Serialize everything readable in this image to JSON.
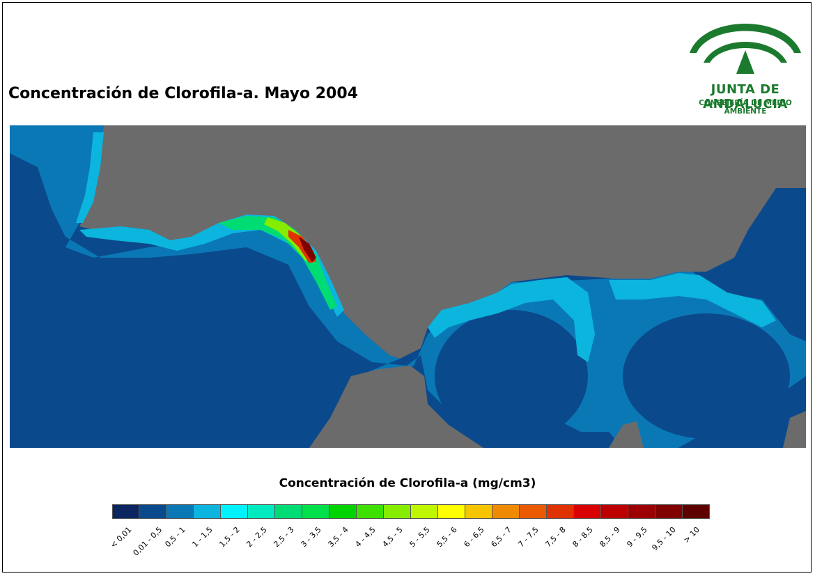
{
  "title": "Concentración de Clorofila-a. Mayo 2004",
  "logo": {
    "name": "JUNTA DE ANDALUCIA",
    "subtitle": "CONSEJERÍA DE MEDIO AMBIENTE",
    "color": "#1b7a2e"
  },
  "map": {
    "land_color": "#6b6b6b",
    "sea_base_color": "#0a4a8c"
  },
  "legend": {
    "title": "Concentración de Clorofila-a (mg/cm3)",
    "classes": [
      {
        "label": "< 0,01",
        "color": "#0a2560"
      },
      {
        "label": "0,01 - 0,5",
        "color": "#0a4a8c"
      },
      {
        "label": "0,5 - 1",
        "color": "#0b78b6"
      },
      {
        "label": "1 - 1,5",
        "color": "#0cb5dd"
      },
      {
        "label": "1,5 - 2",
        "color": "#00f2ff"
      },
      {
        "label": "2 - 2,5",
        "color": "#00eabf"
      },
      {
        "label": "2,5 - 3",
        "color": "#00dc74"
      },
      {
        "label": "3 - 3,5",
        "color": "#00e04a"
      },
      {
        "label": "3,5 - 4",
        "color": "#00d400"
      },
      {
        "label": "4 - 4,5",
        "color": "#3ee000"
      },
      {
        "label": "4,5 - 5",
        "color": "#86ec00"
      },
      {
        "label": "5 - 5,5",
        "color": "#bff700"
      },
      {
        "label": "5,5 - 6",
        "color": "#ffff00"
      },
      {
        "label": "6 - 6,5",
        "color": "#f6c500"
      },
      {
        "label": "6,5 - 7",
        "color": "#f08a00"
      },
      {
        "label": "7 - 7,5",
        "color": "#ea5a00"
      },
      {
        "label": "7,5 - 8",
        "color": "#e03200"
      },
      {
        "label": "8 - 8,5",
        "color": "#d80000"
      },
      {
        "label": "8,5 - 9",
        "color": "#bc0000"
      },
      {
        "label": "9 - 9,5",
        "color": "#9c0000"
      },
      {
        "label": "9,5 - 10",
        "color": "#800000"
      },
      {
        "label": "> 10",
        "color": "#5e0000"
      }
    ]
  }
}
